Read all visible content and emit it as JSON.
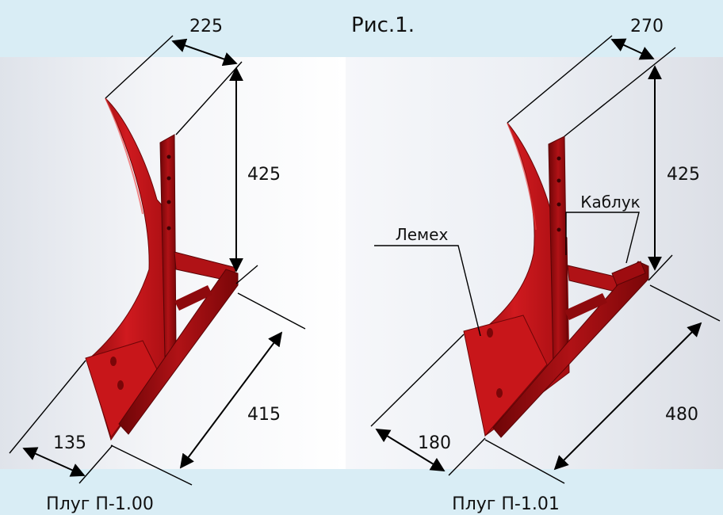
{
  "figure_title": "Рис.1.",
  "left_plow": {
    "caption": "Плуг П-1.00",
    "dim_width_top": "225",
    "dim_height": "425",
    "dim_length": "415",
    "dim_share": "135"
  },
  "right_plow": {
    "caption": "Плуг П-1.01",
    "dim_width_top": "270",
    "dim_height": "425",
    "dim_length": "480",
    "dim_share": "180",
    "label_share": "Лемех",
    "label_heel": "Каблук"
  },
  "colors": {
    "band": "#d9edf5",
    "plow_red": "#c8161a",
    "plow_dark": "#7a0608",
    "dimension_line": "#000000"
  }
}
